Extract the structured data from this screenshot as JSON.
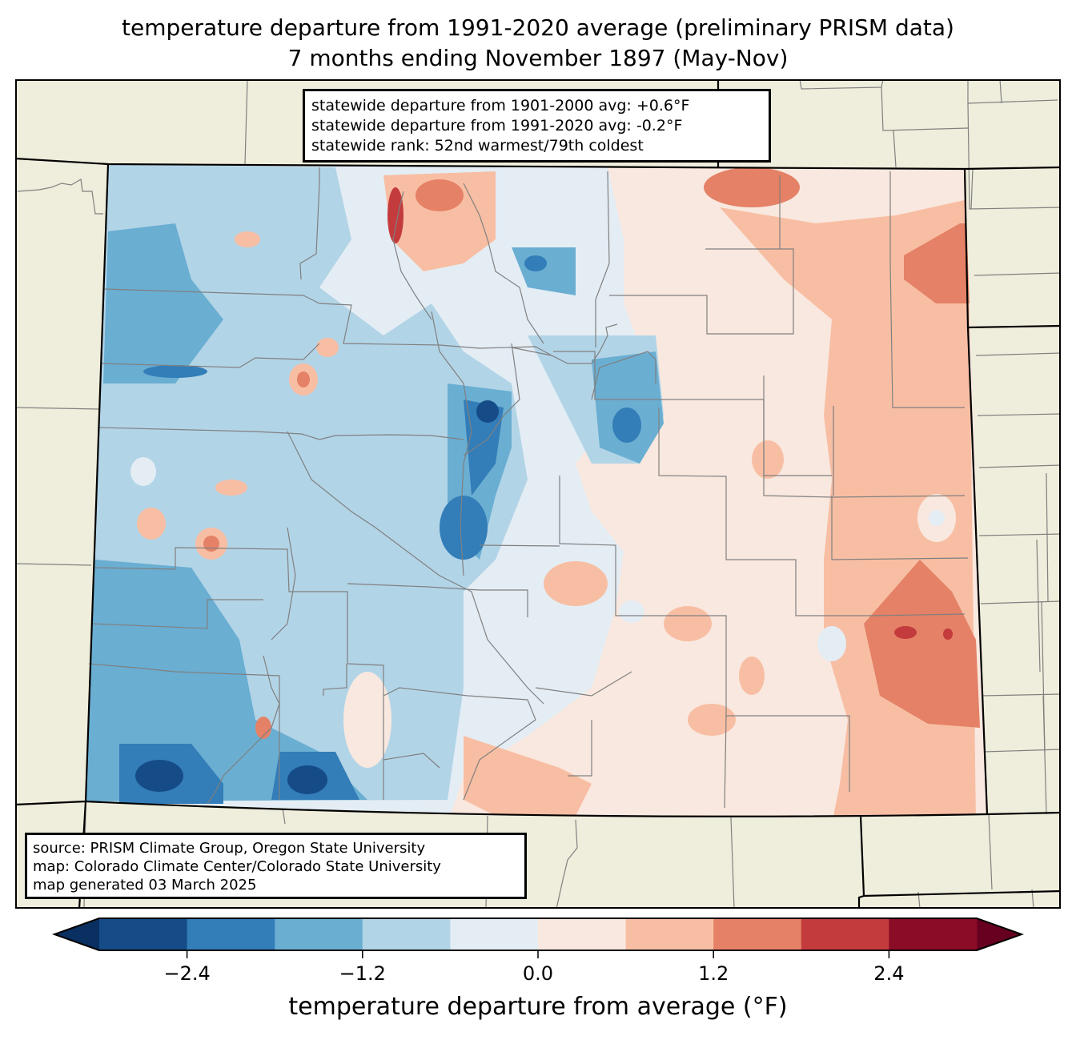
{
  "title": {
    "line1": "temperature departure from 1991-2020 average (preliminary PRISM data)",
    "line2": "7 months ending November 1897 (May-Nov)"
  },
  "stats_box": {
    "line1": "statewide departure from 1901-2000 avg: +0.6°F",
    "line2": "statewide departure from 1991-2020 avg: -0.2°F",
    "line3": "statewide rank: 52nd warmest/79th coldest"
  },
  "source_box": {
    "line1": "source: PRISM Climate Group, Oregon State University",
    "line2": "map: Colorado Climate Center/Colorado State University",
    "line3": "map generated 03 March 2025"
  },
  "colors": {
    "background_land": "#efeddb",
    "county_line": "#808080",
    "state_line": "#000000"
  },
  "colorbar": {
    "label": "temperature departure from average (°F)",
    "bounds": [
      -3.0,
      -2.4,
      -1.8,
      -1.2,
      -0.6,
      0.0,
      0.6,
      1.2,
      1.8,
      2.4,
      3.0
    ],
    "colors": [
      "#154c88",
      "#337db8",
      "#6aaed2",
      "#b2d4e7",
      "#e4edf4",
      "#f9e8df",
      "#f8bea3",
      "#e48166",
      "#c43b3d",
      "#8a0c27"
    ],
    "extend_min_color": "#0a2f61",
    "extend_max_color": "#670020",
    "ticks": [
      {
        "value": -2.4,
        "label": "−2.4"
      },
      {
        "value": -1.2,
        "label": "−1.2"
      },
      {
        "value": 0.0,
        "label": "0.0"
      },
      {
        "value": 1.2,
        "label": "1.2"
      },
      {
        "value": 2.4,
        "label": "2.4"
      }
    ]
  }
}
